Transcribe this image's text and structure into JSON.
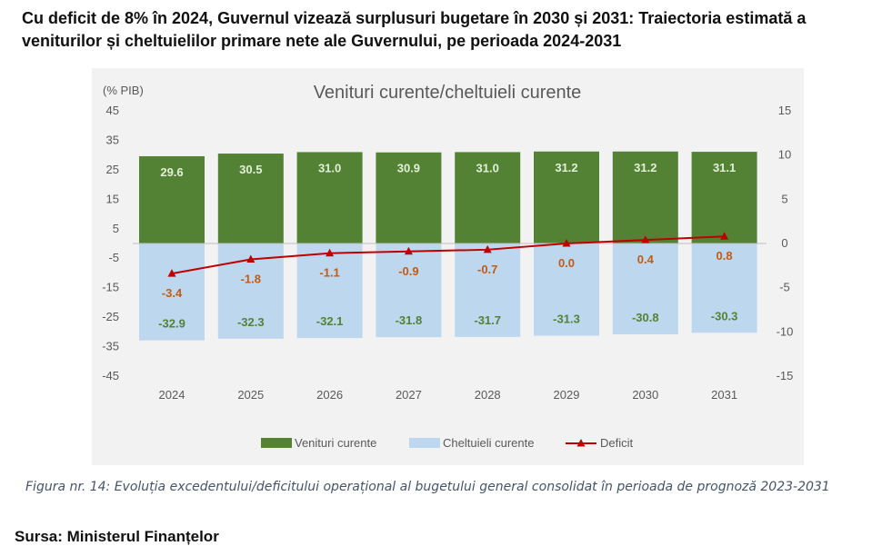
{
  "heading": "Cu deficit de 8% în 2024, Guvernul vizează surplusuri bugetare în 2030 și 2031: Traiectoria estimată a veniturilor și cheltuielilor primare nete ale Guvernului, pe perioada 2024-2031",
  "caption": "Figura nr. 14: Evoluția excedentului/deficitului operațional al bugetului general consolidat în perioada de prognoză 2023-2031",
  "source": "Sursa: Ministerul Finanțelor",
  "chart_data": {
    "type": "bar",
    "title": "Venituri curente/cheltuieli curente",
    "ylabel": "(% PIB)",
    "categories": [
      "2024",
      "2025",
      "2026",
      "2027",
      "2028",
      "2029",
      "2030",
      "2031"
    ],
    "y_ticks": [
      45,
      35,
      25,
      15,
      5,
      -5,
      -15,
      -25,
      -35,
      -45
    ],
    "ylim": [
      -45,
      45
    ],
    "y2_ticks": [
      15,
      10,
      5,
      0,
      -5,
      -10,
      -15
    ],
    "y2lim": [
      -15,
      15
    ],
    "grid": false,
    "legend_position": "bottom",
    "series": [
      {
        "name": "Venituri curente",
        "kind": "bar",
        "axis": "left",
        "color": "#548235",
        "label_color": "#e2f0d9",
        "values": [
          29.6,
          30.5,
          31.0,
          30.9,
          31.0,
          31.2,
          31.2,
          31.1
        ]
      },
      {
        "name": "Cheltuieli curente",
        "kind": "bar",
        "axis": "left",
        "color": "#bdd7ee",
        "label_color": "#548235",
        "values": [
          -32.9,
          -32.3,
          -32.1,
          -31.8,
          -31.7,
          -31.3,
          -30.8,
          -30.3
        ]
      },
      {
        "name": "Deficit",
        "kind": "line",
        "axis": "right",
        "color": "#c00000",
        "label_color": "#c55a11",
        "values": [
          -3.4,
          -1.8,
          -1.1,
          -0.9,
          -0.7,
          0.0,
          0.4,
          0.8
        ]
      }
    ]
  }
}
